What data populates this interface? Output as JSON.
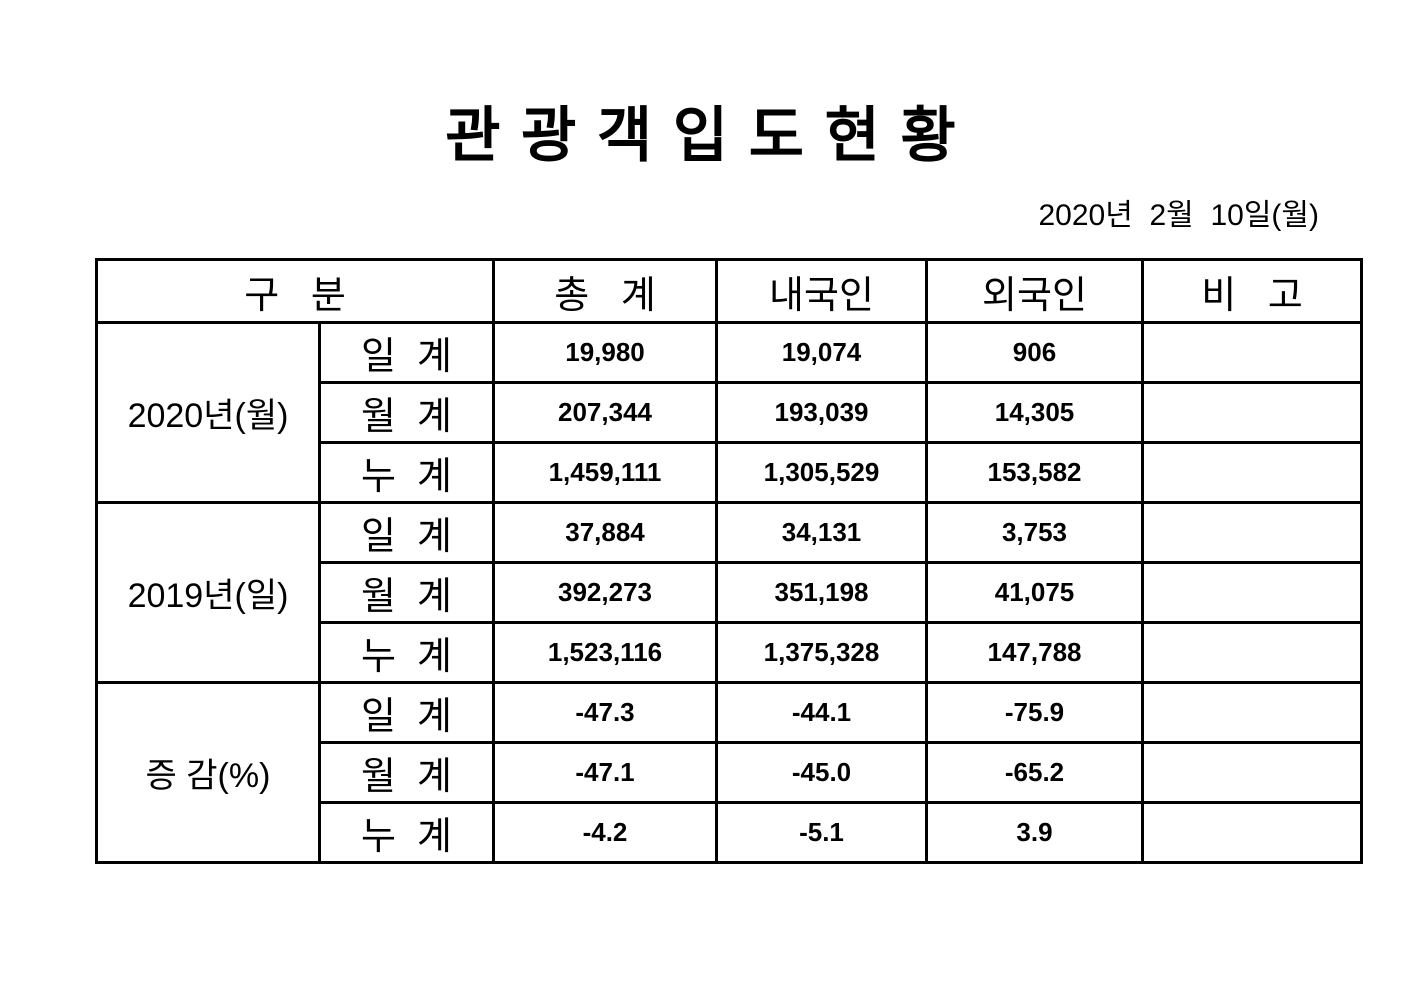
{
  "page": {
    "title": "관 광 객 입 도 현 황",
    "date": "2020년  2월  10일(월)"
  },
  "table": {
    "headers": {
      "category": "구   분",
      "total": "총   계",
      "domestic": "내국인",
      "foreign": "외국인",
      "remarks": "비   고"
    },
    "groups": [
      {
        "label": "2020년(월)",
        "rows": [
          {
            "label": "일  계",
            "total": "19,980",
            "domestic": "19,074",
            "foreign": "906",
            "remarks": ""
          },
          {
            "label": "월  계",
            "total": "207,344",
            "domestic": "193,039",
            "foreign": "14,305",
            "remarks": ""
          },
          {
            "label": "누  계",
            "total": "1,459,111",
            "domestic": "1,305,529",
            "foreign": "153,582",
            "remarks": ""
          }
        ]
      },
      {
        "label": "2019년(일)",
        "rows": [
          {
            "label": "일  계",
            "total": "37,884",
            "domestic": "34,131",
            "foreign": "3,753",
            "remarks": ""
          },
          {
            "label": "월  계",
            "total": "392,273",
            "domestic": "351,198",
            "foreign": "41,075",
            "remarks": ""
          },
          {
            "label": "누  계",
            "total": "1,523,116",
            "domestic": "1,375,328",
            "foreign": "147,788",
            "remarks": ""
          }
        ]
      },
      {
        "label": "증 감(%)",
        "rows": [
          {
            "label": "일  계",
            "total": "-47.3",
            "domestic": "-44.1",
            "foreign": "-75.9",
            "remarks": ""
          },
          {
            "label": "월  계",
            "total": "-47.1",
            "domestic": "-45.0",
            "foreign": "-65.2",
            "remarks": ""
          },
          {
            "label": "누  계",
            "total": "-4.2",
            "domestic": "-5.1",
            "foreign": "3.9",
            "remarks": ""
          }
        ]
      }
    ]
  }
}
